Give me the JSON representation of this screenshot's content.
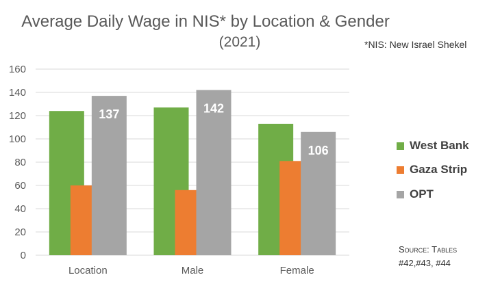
{
  "chart_data": {
    "type": "bar",
    "title": "Average Daily Wage in NIS* by Location & Gender",
    "subtitle": "(2021)",
    "annotation": "*NIS: New Israel Shekel",
    "source_line1": "Source: Tables",
    "source_line2": "#42,#43, #44",
    "categories": [
      "Location",
      "Male",
      "Female"
    ],
    "series": [
      {
        "name": "West Bank",
        "color": "#70ad47",
        "values": [
          124,
          127,
          113
        ]
      },
      {
        "name": "Gaza Strip",
        "color": "#ed7d31",
        "values": [
          60,
          56,
          81
        ]
      },
      {
        "name": "OPT",
        "color": "#a5a5a5",
        "values": [
          137,
          142,
          106
        ],
        "labels": [
          "137",
          "142",
          "106"
        ]
      }
    ],
    "ylim": [
      0,
      160
    ],
    "yticks": [
      "0",
      "20",
      "40",
      "60",
      "80",
      "100",
      "120",
      "140",
      "160"
    ],
    "grid": true,
    "legend": "right"
  }
}
